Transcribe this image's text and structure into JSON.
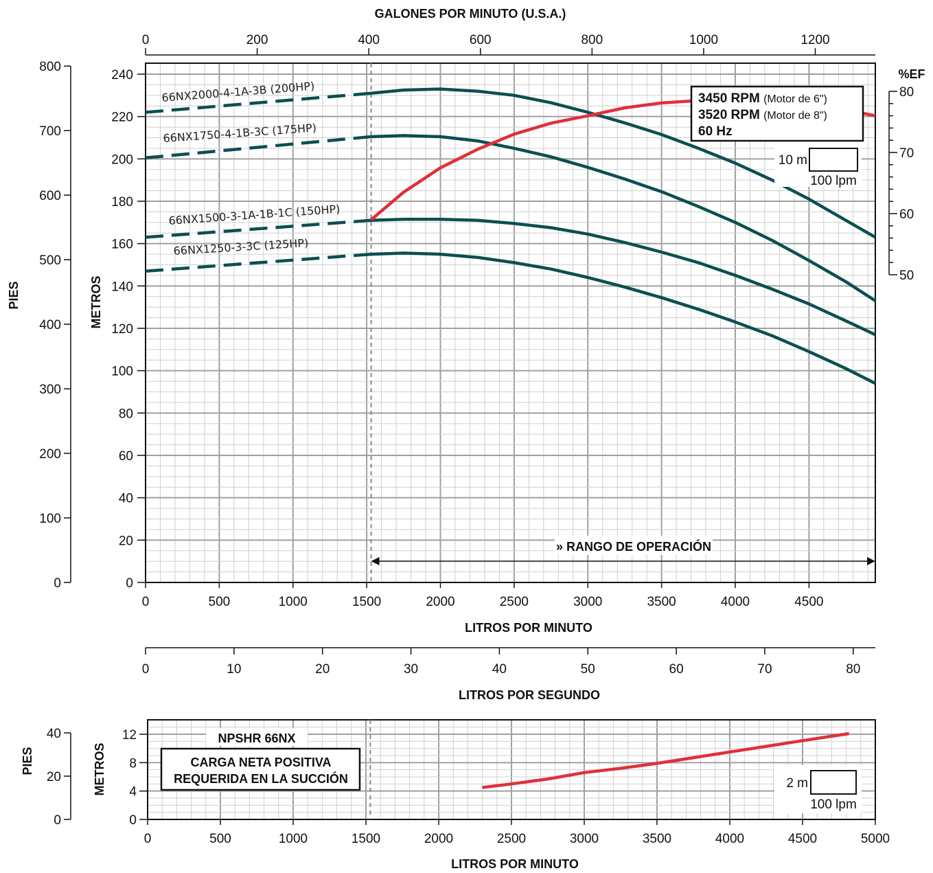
{
  "colors": {
    "head_curve": "#0b4f52",
    "eff_curve": "#e0303a",
    "npsh_curve": "#e0303a",
    "grid_major": "#a0a0a0",
    "grid_minor": "#cfcfcf",
    "axis": "#111111"
  },
  "chart_data": [
    {
      "type": "line",
      "title": "",
      "xlabel": "LITROS POR MINUTO",
      "ylabel": "METROS",
      "xlim": [
        0,
        4950
      ],
      "ylim": [
        0,
        240
      ],
      "x_ticks": [
        "0",
        "500",
        "1000",
        "1500",
        "2000",
        "2500",
        "3000",
        "3500",
        "4000",
        "4500"
      ],
      "y_ticks": [
        "0",
        "20",
        "40",
        "60",
        "80",
        "100",
        "120",
        "140",
        "160",
        "180",
        "200",
        "220",
        "240"
      ],
      "top_axis": {
        "label": "GALONES POR MINUTO (U.S.A.)",
        "ticks": [
          "0",
          "200",
          "400",
          "600",
          "800",
          "1000",
          "1200"
        ]
      },
      "left_axis": {
        "label": "PIES",
        "ticks": [
          "0",
          "100",
          "200",
          "300",
          "400",
          "500",
          "600",
          "700",
          "800"
        ]
      },
      "bottom_axis_2": {
        "label": "LITROS POR SEGUNDO",
        "ticks": [
          "0",
          "10",
          "20",
          "30",
          "40",
          "50",
          "60",
          "70",
          "80"
        ]
      },
      "right_axis": {
        "label": "%EF",
        "ticks": [
          "50",
          "60",
          "70",
          "80"
        ],
        "range": [
          50,
          80
        ]
      },
      "operating_range": {
        "label": "» RANGO DE OPERACIÓN",
        "from": 1530,
        "to": 4950
      },
      "scale_box": {
        "vertical": "10 m",
        "horizontal": "100 lpm"
      },
      "info_box": {
        "rpm1": "3450 RPM",
        "rpm1_note": "(Motor de 6\")",
        "rpm2": "3520 RPM",
        "rpm2_note": "(Motor de 8\")",
        "hz": "60 Hz"
      },
      "series": [
        {
          "name": "66NX2000-4-1A-3B (200HP)",
          "dashed_x": [
            0,
            1530
          ],
          "dashed_y": [
            222,
            231
          ],
          "x": [
            1530,
            1750,
            2000,
            2250,
            2500,
            2750,
            3000,
            3250,
            3500,
            3750,
            4000,
            4250,
            4500,
            4750,
            4950
          ],
          "y": [
            231,
            232.5,
            233,
            232,
            230,
            226.5,
            222,
            217,
            211.5,
            205,
            198,
            190,
            181,
            171,
            163
          ]
        },
        {
          "name": "66NX1750-4-1B-3C (175HP)",
          "dashed_x": [
            0,
            1530
          ],
          "dashed_y": [
            200.5,
            210.5
          ],
          "x": [
            1530,
            1750,
            2000,
            2250,
            2500,
            2750,
            3000,
            3250,
            3500,
            3750,
            4000,
            4250,
            4500,
            4750,
            4950
          ],
          "y": [
            210.5,
            211,
            210.5,
            208.5,
            205,
            201,
            196,
            190.5,
            184.5,
            177.5,
            170,
            161.5,
            152,
            142,
            133
          ]
        },
        {
          "name": "66NX1500-3-1A-1B-1C (150HP)",
          "dashed_x": [
            0,
            1530
          ],
          "dashed_y": [
            163,
            171
          ],
          "x": [
            1530,
            1750,
            2000,
            2250,
            2500,
            2750,
            3000,
            3250,
            3500,
            3750,
            4000,
            4250,
            4500,
            4750,
            4950
          ],
          "y": [
            171,
            171.5,
            171.5,
            171,
            169.5,
            167.5,
            164.5,
            160.5,
            156,
            151,
            145,
            138.5,
            131.5,
            123.5,
            117
          ]
        },
        {
          "name": "66NX1250-3-3C (125HP)",
          "dashed_x": [
            0,
            1530
          ],
          "dashed_y": [
            147,
            155
          ],
          "x": [
            1530,
            1750,
            2000,
            2250,
            2500,
            2750,
            3000,
            3250,
            3500,
            3750,
            4000,
            4250,
            4500,
            4750,
            4950
          ],
          "y": [
            155,
            155.5,
            155,
            153.5,
            151,
            148,
            144,
            139.5,
            134.5,
            129,
            123,
            116.5,
            109,
            101,
            94
          ]
        }
      ],
      "efficiency": {
        "x": [
          1530,
          1750,
          2000,
          2250,
          2500,
          2750,
          3000,
          3250,
          3500,
          3750,
          4000,
          4250,
          4500,
          4750,
          4950
        ],
        "y": [
          59,
          63.5,
          67.5,
          70.5,
          73,
          74.8,
          76,
          77.3,
          78.1,
          78.5,
          78.5,
          78.3,
          77.8,
          77,
          76
        ]
      }
    },
    {
      "type": "line",
      "title": "NPSHR 66NX",
      "note": [
        "CARGA NETA POSITIVA",
        "REQUERIDA EN LA SUCCIÓN"
      ],
      "xlabel": "LITROS POR MINUTO",
      "ylabel": "METROS",
      "xlim": [
        0,
        5000
      ],
      "ylim": [
        0,
        14
      ],
      "x_ticks": [
        "0",
        "500",
        "1000",
        "1500",
        "2000",
        "2500",
        "3000",
        "3500",
        "4000",
        "4500",
        "5000"
      ],
      "y_ticks": [
        "0",
        "4",
        "8",
        "12"
      ],
      "left_axis": {
        "label": "PIES",
        "ticks": [
          "0",
          "20",
          "40"
        ]
      },
      "scale_box": {
        "vertical": "2 m",
        "horizontal": "100 lpm"
      },
      "series": [
        {
          "name": "",
          "x": [
            2300,
            2500,
            2750,
            3000,
            3250,
            3500,
            3750,
            4000,
            4250,
            4500,
            4820
          ],
          "y": [
            4.5,
            5.0,
            5.7,
            6.6,
            7.2,
            7.9,
            8.7,
            9.5,
            10.3,
            11.1,
            12.1
          ]
        }
      ]
    }
  ]
}
